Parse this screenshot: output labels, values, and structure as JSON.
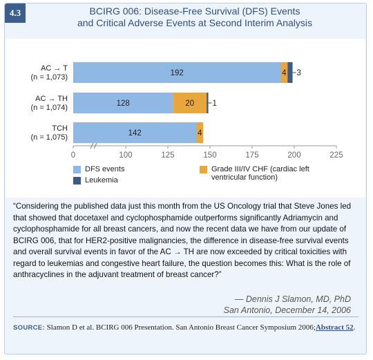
{
  "figure": {
    "number": "4.3",
    "title_line1": "BCIRG 006: Disease-Free Survival (DFS) Events",
    "title_line2": "and Critical Adverse Events at Second Interim Analysis"
  },
  "chart_data": {
    "type": "bar",
    "orientation": "horizontal",
    "stacked": true,
    "axis_break": true,
    "categories": [
      {
        "line1": "AC → T",
        "line2": "(n = 1,073)"
      },
      {
        "line1": "AC → TH",
        "line2": "(n = 1,074)"
      },
      {
        "line1": "TCH",
        "line2": "(n = 1,075)"
      }
    ],
    "series": [
      {
        "name": "DFS events",
        "color": "#8fb8e4",
        "values": [
          192,
          128,
          142
        ]
      },
      {
        "name": "Grade III/IV CHF (cardiac left ventricular function)",
        "color": "#e8a63c",
        "values": [
          4,
          20,
          4
        ]
      },
      {
        "name": "Leukemia",
        "color": "#3e5b86",
        "values": [
          3,
          1,
          0
        ]
      }
    ],
    "data_labels": [
      [
        "192",
        "4",
        "3"
      ],
      [
        "128",
        "20",
        "1"
      ],
      [
        "142",
        "4",
        ""
      ]
    ],
    "x_ticks": [
      "0",
      "100",
      "125",
      "150",
      "175",
      "200",
      "225"
    ],
    "x_range": [
      0,
      225
    ]
  },
  "legend": {
    "dfs": "DFS events",
    "leukemia": "Leukemia",
    "chf_line1": "Grade III/IV CHF (cardiac left",
    "chf_line2": "ventricular function)"
  },
  "quote": {
    "text": "“Considering the published data just this month from the US Oncology trial that Steve Jones led that showed that docetaxel and cyclophosphamide outperforms significantly Adriamycin and cyclophosphamide for all breast cancers, and now the recent data we have from our update of BCIRG 006, that for HER2-positive malignancies, the difference in disease-free survival events and overall survival events in favor of the AC → TH are now exceeded by critical toxicities with regard to leukemias and congestive heart failure, the question becomes this: What is the role of anthracyclines in the adjuvant treatment of breast cancer?”",
    "author": "— Dennis J Slamon, MD, PhD",
    "place_date": "San Antonio, December 14, 2006"
  },
  "source": {
    "label": "SOURCE:",
    "text": "Slamon D et al. BCIRG 006 Presentation. San Antonio Breast Cancer Symposium 2006;",
    "link": "Abstract 52",
    "end": "."
  }
}
